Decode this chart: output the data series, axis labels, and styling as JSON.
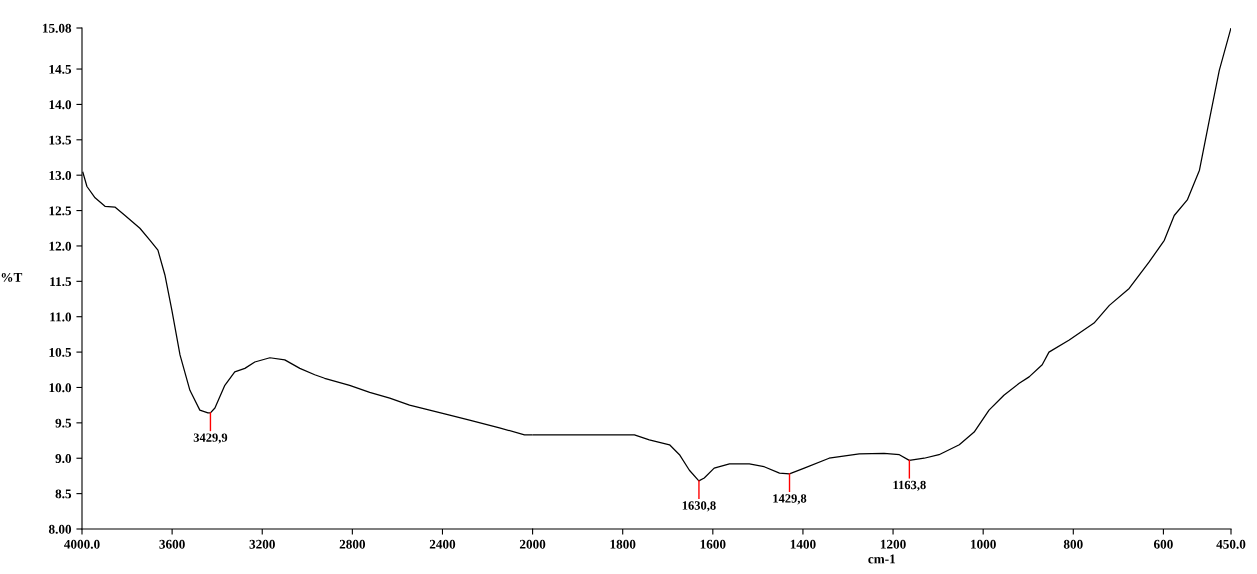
{
  "chart_data": [
    {
      "type": "line",
      "ylabel": "%T",
      "x": [
        3996,
        3978,
        3942,
        3898,
        3854,
        3809,
        3743,
        3698,
        3663,
        3632,
        3601,
        3565,
        3521,
        3477,
        3441,
        3430,
        3410,
        3366,
        3322,
        3277,
        3233,
        3166,
        3100,
        3033,
        2967,
        2923,
        2812,
        2723,
        2634,
        2546,
        2457,
        2368,
        2280,
        2147,
        2036,
        2000
      ],
      "series": [
        {
          "color": "#000000",
          "values": [
            13.04,
            12.84,
            12.68,
            12.56,
            12.55,
            12.43,
            12.25,
            12.08,
            11.94,
            11.59,
            11.09,
            10.46,
            9.96,
            9.68,
            9.64,
            9.64,
            9.71,
            10.03,
            10.22,
            10.27,
            10.36,
            10.42,
            10.39,
            10.27,
            10.18,
            10.13,
            10.03,
            9.93,
            9.85,
            9.75,
            9.68,
            9.61,
            9.54,
            9.43,
            9.33,
            9.33
          ]
        }
      ],
      "xlim": [
        4000,
        2000
      ],
      "xticks": [
        {
          "value": 4000,
          "label": "4000.0"
        },
        3600,
        3200,
        2800,
        2400,
        2000
      ],
      "ylim": [
        8.0,
        15.08
      ],
      "yticks": [
        {
          "value": 8.0,
          "label": "8.00"
        },
        8.5,
        {
          "value": 9,
          "label": "9.0"
        },
        9.5,
        {
          "value": 10,
          "label": "10.0"
        },
        10.5,
        {
          "value": 11,
          "label": "11.0"
        },
        11.5,
        {
          "value": 12,
          "label": "12.0"
        },
        12.5,
        {
          "value": 13,
          "label": "13.0"
        },
        13.5,
        {
          "value": 14,
          "label": "14.0"
        },
        14.5,
        15.08
      ],
      "annotations": [
        {
          "text": "3429,9",
          "x": 3429.9,
          "y": 9.64
        }
      ],
      "grid": false
    },
    {
      "type": "line",
      "xlabel": "cm-1",
      "x": [
        2000,
        1940,
        1851,
        1774,
        1741,
        1696,
        1674,
        1652,
        1631,
        1619,
        1597,
        1563,
        1519,
        1486,
        1452,
        1430,
        1397,
        1342,
        1275,
        1220,
        1186,
        1164,
        1131,
        1098,
        1053,
        1020,
        987,
        954,
        920,
        898,
        869,
        854,
        809,
        754,
        720,
        676,
        632,
        598,
        576,
        547,
        520,
        498,
        476,
        450
      ],
      "series": [
        {
          "color": "#000000",
          "values": [
            9.33,
            9.33,
            9.33,
            9.33,
            9.26,
            9.19,
            9.05,
            8.83,
            8.68,
            8.72,
            8.86,
            8.92,
            8.92,
            8.88,
            8.79,
            8.78,
            8.86,
            9.0,
            9.06,
            9.07,
            9.05,
            8.97,
            9.0,
            9.05,
            9.19,
            9.37,
            9.68,
            9.89,
            10.06,
            10.15,
            10.32,
            10.5,
            10.67,
            10.91,
            11.16,
            11.4,
            11.77,
            12.08,
            12.43,
            12.65,
            13.07,
            13.78,
            14.48,
            15.08
          ]
        }
      ],
      "xlim": [
        2000,
        450
      ],
      "xticks": [
        1800,
        1600,
        1400,
        1200,
        1000,
        800,
        600,
        {
          "value": 450,
          "label": "450.0"
        }
      ],
      "ylim": [
        8.0,
        15.08
      ],
      "tick_labels": "x",
      "annotations": [
        {
          "text": "1630,8",
          "x": 1630.8,
          "y": 8.68
        },
        {
          "text": "1429,8",
          "x": 1429.8,
          "y": 8.78
        },
        {
          "text": "1163,8",
          "x": 1163.8,
          "y": 8.97
        }
      ],
      "grid": false
    }
  ]
}
